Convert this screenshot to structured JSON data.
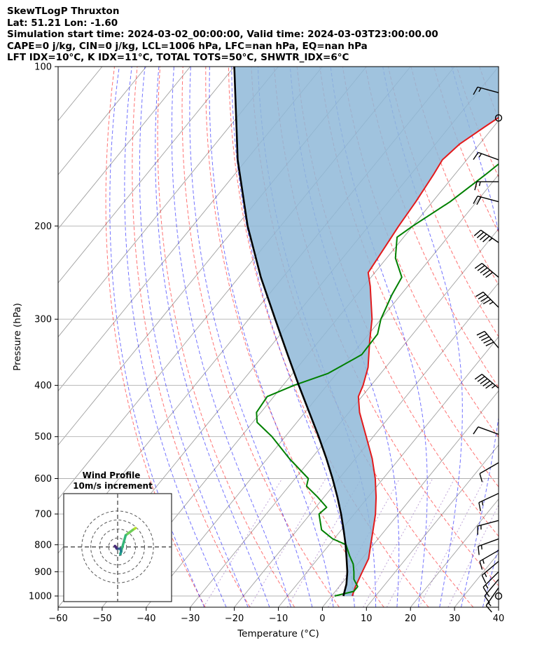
{
  "header": {
    "lines": [
      "SkewTLogP Thruxton",
      "Lat: 51.21   Lon: -1.60",
      "Simulation start time: 2024-03-02_00:00:00, Valid time: 2024-03-03T23:00:00.00",
      "CAPE=0 j/kg, CIN=0 j/kg, LCL=1006 hPa, LFC=nan hPa, EQ=nan hPa",
      "LFT IDX=10°C, K IDX=11°C, TOTAL TOTS=50°C, SHWTR_IDX=6°C"
    ]
  },
  "colors": {
    "temperature": "#e31a1c",
    "dewpoint": "#008000",
    "parcel": "#000000",
    "cape_fill": "#8fb8d8",
    "dry_adiabat": "#ff0000",
    "moist_adiabat": "#0000ff",
    "mixing_ratio": "#9467bd",
    "isotherm": "#808080"
  },
  "chart_data": {
    "type": "line",
    "xlabel": "Temperature (°C)",
    "ylabel": "Pressure (hPa)",
    "xlim": [
      -60,
      40
    ],
    "ylim": [
      1050,
      100
    ],
    "yscale": "log",
    "x_ticks": [
      -60,
      -50,
      -40,
      -30,
      -20,
      -10,
      0,
      10,
      20,
      30,
      40
    ],
    "x_tick_labels": [
      "−60",
      "−50",
      "−40",
      "−30",
      "−20",
      "−10",
      "0",
      "10",
      "20",
      "30",
      "40"
    ],
    "y_ticks": [
      1000,
      900,
      800,
      700,
      600,
      500,
      400,
      300,
      200,
      100
    ],
    "y_tick_labels": [
      "1000",
      "900",
      "800",
      "700",
      "600",
      "500",
      "400",
      "300",
      "200",
      "100"
    ],
    "grid": true,
    "series": [
      {
        "role": "temperature",
        "points": [
          [
            1000,
            4.7
          ],
          [
            960,
            3.7
          ],
          [
            900,
            2.5
          ],
          [
            850,
            1.5
          ],
          [
            800,
            -0.6
          ],
          [
            750,
            -2.8
          ],
          [
            700,
            -5.2
          ],
          [
            650,
            -8.2
          ],
          [
            600,
            -11.8
          ],
          [
            550,
            -16.2
          ],
          [
            500,
            -21.6
          ],
          [
            450,
            -27.6
          ],
          [
            420,
            -30.8
          ],
          [
            400,
            -31.8
          ],
          [
            370,
            -34.0
          ],
          [
            330,
            -38.5
          ],
          [
            300,
            -42.0
          ],
          [
            260,
            -48.5
          ],
          [
            245,
            -51.5
          ],
          [
            230,
            -52.0
          ],
          [
            200,
            -53.2
          ],
          [
            180,
            -53.8
          ],
          [
            160,
            -54.8
          ],
          [
            150,
            -55.5
          ],
          [
            140,
            -54.5
          ],
          [
            130,
            -52.0
          ],
          [
            120,
            -49.2
          ],
          [
            110,
            -46.6
          ],
          [
            100,
            -44.5
          ]
        ]
      },
      {
        "role": "dewpoint",
        "points": [
          [
            1000,
            0.7
          ],
          [
            980,
            4.2
          ],
          [
            960,
            4.2
          ],
          [
            930,
            2.0
          ],
          [
            900,
            0.6
          ],
          [
            870,
            -1.0
          ],
          [
            840,
            -3.3
          ],
          [
            800,
            -6.2
          ],
          [
            780,
            -10.3
          ],
          [
            750,
            -14.5
          ],
          [
            700,
            -18.0
          ],
          [
            680,
            -17.5
          ],
          [
            650,
            -21.5
          ],
          [
            620,
            -26.0
          ],
          [
            600,
            -27.0
          ],
          [
            550,
            -35.0
          ],
          [
            500,
            -43.0
          ],
          [
            470,
            -49.0
          ],
          [
            450,
            -51.0
          ],
          [
            420,
            -51.5
          ],
          [
            400,
            -47.5
          ],
          [
            380,
            -42.0
          ],
          [
            350,
            -37.8
          ],
          [
            320,
            -38.0
          ],
          [
            300,
            -40.0
          ],
          [
            270,
            -42.0
          ],
          [
            250,
            -43.0
          ],
          [
            230,
            -48.0
          ],
          [
            210,
            -51.5
          ],
          [
            200,
            -50.0
          ],
          [
            180,
            -46.0
          ],
          [
            160,
            -43.0
          ],
          [
            140,
            -40.0
          ],
          [
            120,
            -37.5
          ],
          [
            100,
            -35.0
          ]
        ]
      },
      {
        "role": "parcel",
        "points": [
          [
            1000,
            2.7
          ],
          [
            950,
            1.2
          ],
          [
            900,
            -0.9
          ],
          [
            850,
            -3.5
          ],
          [
            800,
            -6.3
          ],
          [
            750,
            -9.5
          ],
          [
            700,
            -13.0
          ],
          [
            650,
            -17.0
          ],
          [
            600,
            -21.5
          ],
          [
            550,
            -26.6
          ],
          [
            500,
            -32.4
          ],
          [
            450,
            -39.0
          ],
          [
            400,
            -46.4
          ],
          [
            350,
            -54.6
          ],
          [
            300,
            -64.0
          ],
          [
            250,
            -75.0
          ],
          [
            200,
            -87.5
          ],
          [
            150,
            -102.0
          ],
          [
            100,
            -120.0
          ]
        ]
      }
    ],
    "wind_barbs": [
      {
        "p": 1000,
        "type": "calm"
      },
      {
        "p": 965,
        "dir": 215,
        "speed_kt": 15
      },
      {
        "p": 930,
        "dir": 220,
        "speed_kt": 15
      },
      {
        "p": 900,
        "dir": 225,
        "speed_kt": 15
      },
      {
        "p": 860,
        "dir": 230,
        "speed_kt": 15
      },
      {
        "p": 820,
        "dir": 240,
        "speed_kt": 15
      },
      {
        "p": 780,
        "dir": 250,
        "speed_kt": 15
      },
      {
        "p": 720,
        "dir": 255,
        "speed_kt": 15
      },
      {
        "p": 640,
        "dir": 245,
        "speed_kt": 15
      },
      {
        "p": 560,
        "dir": 240,
        "speed_kt": 10
      },
      {
        "p": 495,
        "dir": 290,
        "speed_kt": 10
      },
      {
        "p": 405,
        "dir": 310,
        "speed_kt": 55
      },
      {
        "p": 340,
        "dir": 320,
        "speed_kt": 50
      },
      {
        "p": 285,
        "dir": 315,
        "speed_kt": 45
      },
      {
        "p": 250,
        "dir": 310,
        "speed_kt": 50
      },
      {
        "p": 215,
        "dir": 305,
        "speed_kt": 45
      },
      {
        "p": 180,
        "dir": 285,
        "speed_kt": 20
      },
      {
        "p": 165,
        "dir": 270,
        "speed_kt": 15
      },
      {
        "p": 150,
        "dir": 290,
        "speed_kt": 15
      },
      {
        "p": 125,
        "type": "calm"
      },
      {
        "p": 112,
        "dir": 285,
        "speed_kt": 15
      }
    ],
    "hodograph": {
      "title": "Wind Profile",
      "subtitle": "10m/s increment",
      "rings": [
        10,
        20,
        30,
        40
      ],
      "points": [
        [
          -1,
          1
        ],
        [
          -3,
          -1
        ],
        [
          -1,
          2
        ],
        [
          3,
          2
        ],
        [
          4,
          5
        ],
        [
          3,
          8
        ],
        [
          9,
          -13
        ],
        [
          17,
          -19
        ],
        [
          20,
          -21
        ]
      ]
    }
  }
}
